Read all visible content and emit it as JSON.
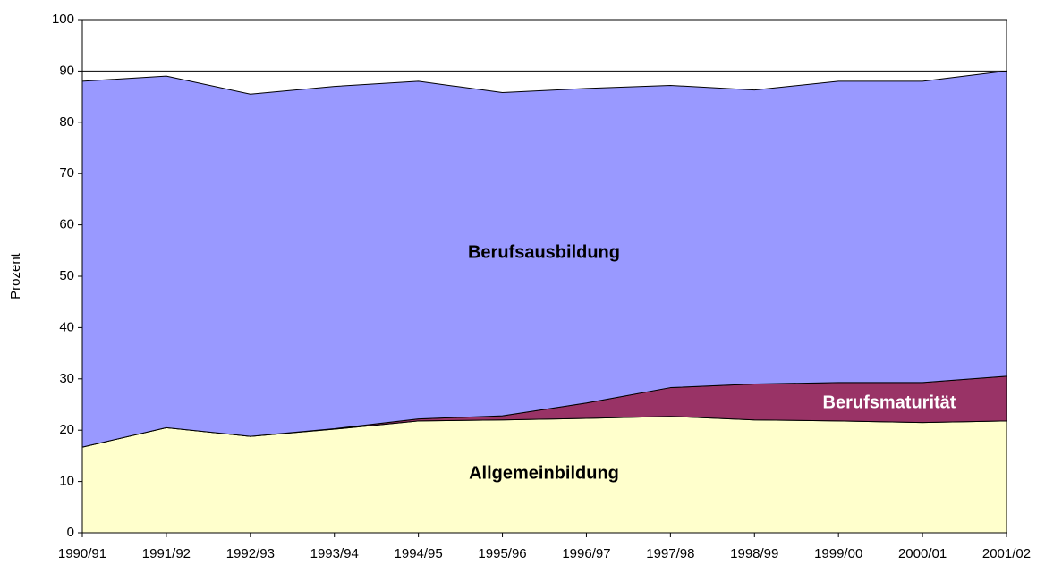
{
  "chart_data": {
    "type": "stacked_area",
    "ylabel": "Prozent",
    "categories": [
      "1990/91",
      "1991/92",
      "1992/93",
      "1993/94",
      "1994/95",
      "1995/96",
      "1996/97",
      "1997/98",
      "1998/99",
      "1999/00",
      "2000/01",
      "2001/02"
    ],
    "series": [
      {
        "name": "Allgemeinbildung",
        "color": "#ffffcc",
        "values": [
          16.7,
          20.5,
          18.8,
          20.2,
          21.8,
          22.0,
          22.3,
          22.7,
          22.0,
          21.8,
          21.5,
          21.8
        ]
      },
      {
        "name": "Berufsmaturität",
        "color": "#993366",
        "values": [
          0,
          0,
          0,
          0.1,
          0.4,
          0.8,
          3.0,
          5.6,
          7.0,
          7.5,
          7.8,
          8.7
        ]
      },
      {
        "name": "Berufsausbildung",
        "color": "#9999ff",
        "values": [
          71.3,
          68.5,
          66.7,
          66.7,
          65.8,
          63.0,
          61.3,
          58.9,
          57.3,
          58.7,
          58.7,
          59.5
        ]
      }
    ],
    "ylim": [
      0,
      100
    ],
    "yticks": [
      0,
      10,
      20,
      30,
      40,
      50,
      60,
      70,
      80,
      90,
      100
    ],
    "grid": true
  }
}
